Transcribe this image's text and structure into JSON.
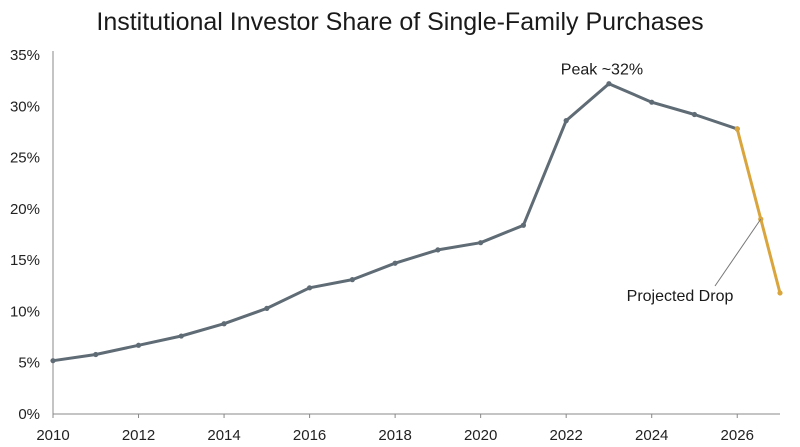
{
  "chart_data": {
    "type": "line",
    "title": "Institutional Investor Share of Single-Family Purchases",
    "xlabel": "",
    "ylabel": "",
    "xlim": [
      2010,
      2027
    ],
    "ylim": [
      0,
      35
    ],
    "x_ticks": [
      2010,
      2012,
      2014,
      2016,
      2018,
      2020,
      2022,
      2024,
      2026
    ],
    "y_ticks": [
      0,
      5,
      10,
      15,
      20,
      25,
      30,
      35
    ],
    "y_tick_suffix": "%",
    "grid": false,
    "legend": "none",
    "series": [
      {
        "color": "#5f6b75",
        "x": [
          2010,
          2011,
          2012,
          2013,
          2014,
          2015,
          2016,
          2017,
          2018,
          2019,
          2020,
          2021,
          2022,
          2023,
          2024,
          2025,
          2026
        ],
        "values": [
          5.2,
          5.8,
          6.7,
          7.6,
          8.8,
          10.3,
          12.3,
          13.1,
          14.7,
          16.0,
          16.7,
          18.4,
          28.6,
          32.2,
          30.4,
          29.2,
          27.8
        ]
      },
      {
        "color": "#d9a53c",
        "x": [
          2026,
          2026.55,
          2027
        ],
        "values": [
          27.8,
          19.0,
          11.8
        ]
      }
    ],
    "annotations": [
      {
        "text": "Peak ~32%",
        "x": 2023,
        "y": 32.2
      },
      {
        "text": "Projected Drop",
        "x": 2026.55,
        "y": 19.0
      }
    ]
  }
}
